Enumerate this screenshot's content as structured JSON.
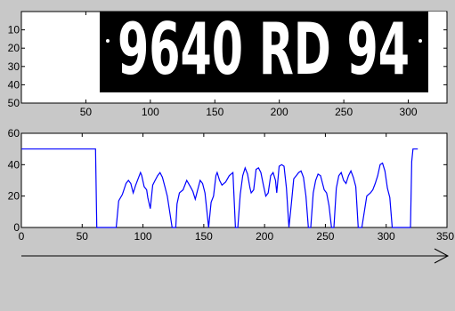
{
  "chart_data": [
    {
      "type": "image",
      "plate_text": "9640 RD 94",
      "xlim": [
        0,
        330
      ],
      "ylim": [
        0,
        50
      ],
      "x_ticks": [
        50,
        100,
        150,
        200,
        250,
        300
      ],
      "y_ticks": [
        10,
        20,
        30,
        40,
        50
      ],
      "plate_extent_x": [
        63,
        320
      ],
      "colors": {
        "plate": "#000000",
        "characters": "#ffffff",
        "background": "#ffffff"
      }
    },
    {
      "type": "line",
      "xlim": [
        0,
        350
      ],
      "ylim": [
        0,
        60
      ],
      "x_ticks": [
        0,
        50,
        100,
        150,
        200,
        250,
        300,
        350
      ],
      "y_ticks": [
        0,
        20,
        40,
        60
      ],
      "y_tick_labels": [
        "0",
        "20",
        "40",
        "60"
      ],
      "colors": {
        "line": "#0000ff"
      },
      "series": [
        {
          "x": [
            0,
            61,
            62,
            78,
            80,
            83,
            86,
            88,
            90,
            92,
            94,
            96,
            98,
            99,
            101,
            103,
            104,
            106,
            108,
            110,
            112,
            114,
            116,
            118,
            120,
            124,
            127,
            128,
            130,
            133,
            136,
            139,
            141,
            143,
            145,
            147,
            149,
            151,
            154,
            156,
            158,
            160,
            161,
            163,
            165,
            168,
            171,
            174,
            176,
            178,
            180,
            182,
            184,
            186,
            188,
            189,
            191,
            193,
            195,
            197,
            199,
            201,
            203,
            205,
            207,
            209,
            210,
            212,
            214,
            216,
            218,
            220,
            222,
            224,
            226,
            228,
            230,
            232,
            234,
            236,
            238,
            240,
            242,
            244,
            246,
            249,
            251,
            253,
            255,
            257,
            259,
            261,
            263,
            265,
            267,
            269,
            271,
            273,
            275,
            277,
            280,
            284,
            287,
            289,
            291,
            293,
            295,
            297,
            299,
            301,
            303,
            305,
            308,
            311,
            313,
            320,
            321,
            322,
            326
          ],
          "y": [
            50,
            50,
            0,
            0,
            17,
            21,
            28,
            30,
            28,
            22,
            27,
            31,
            35,
            33,
            26,
            24,
            19,
            12,
            27,
            30,
            33,
            35,
            32,
            26,
            20,
            0,
            0,
            15,
            22,
            24,
            30,
            26,
            23,
            18,
            24,
            30,
            28,
            22,
            0,
            16,
            20,
            33,
            35,
            30,
            27,
            29,
            33,
            35,
            0,
            0,
            21,
            33,
            38,
            34,
            25,
            22,
            24,
            37,
            38,
            35,
            27,
            20,
            22,
            33,
            35,
            30,
            22,
            39,
            40,
            39,
            25,
            0,
            15,
            31,
            33,
            35,
            36,
            32,
            20,
            0,
            0,
            22,
            30,
            34,
            33,
            24,
            22,
            14,
            0,
            0,
            25,
            33,
            35,
            30,
            28,
            33,
            36,
            32,
            26,
            0,
            0,
            20,
            22,
            24,
            28,
            33,
            40,
            41,
            36,
            25,
            19,
            0,
            0,
            0,
            0,
            0,
            42,
            50,
            50
          ]
        }
      ]
    }
  ]
}
